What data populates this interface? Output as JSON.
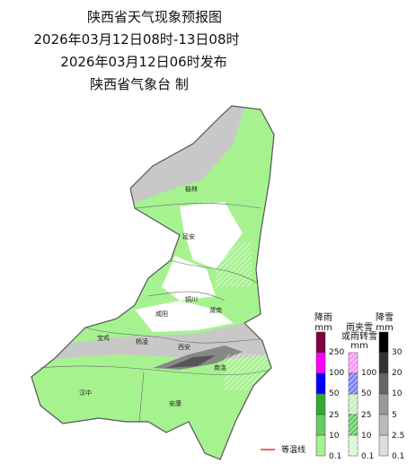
{
  "header": {
    "title": "陕西省天气现象预报图",
    "valid_time": "2026年03月12日08时-13日08时",
    "issued": "2026年03月12日06时发布",
    "issuer": "陕西省气象台 制"
  },
  "cities": [
    "榆林",
    "延安",
    "铜川",
    "咸阳",
    "渭南",
    "宝鸡",
    "杨凌",
    "西安",
    "商洛",
    "汉中",
    "安康"
  ],
  "legend": {
    "rain": {
      "title": "降雨",
      "unit": "mm",
      "ticks": [
        250,
        100,
        50,
        25,
        10,
        0.1
      ]
    },
    "sleet": {
      "title_lines": [
        "雨夹雪",
        "或雨转雪"
      ],
      "unit": "mm",
      "ticks": [
        100,
        50,
        25,
        10,
        0.1
      ]
    },
    "snow": {
      "title": "降雪",
      "unit": "mm",
      "ticks": [
        30,
        20,
        10,
        5,
        2.5,
        0.1
      ]
    },
    "isotherm": "等温线"
  }
}
